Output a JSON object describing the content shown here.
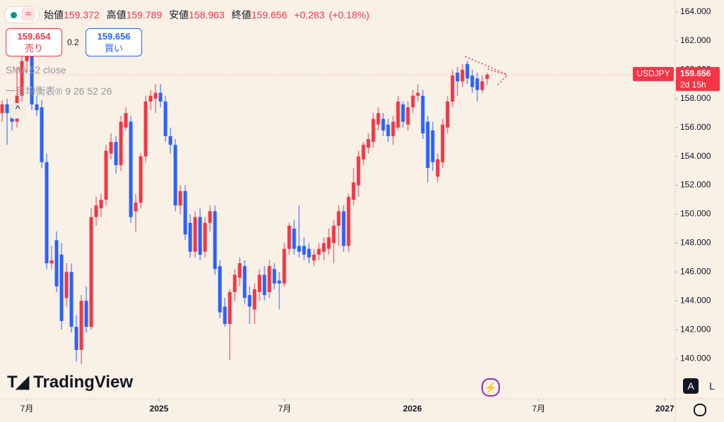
{
  "toolbar": {
    "open_label": "始値",
    "open": "159.372",
    "high_label": "高値",
    "high": "159.789",
    "low_label": "安値",
    "low": "158.963",
    "close_label": "終値",
    "close": "159.656",
    "change": "+0.283",
    "change_pct": "(+0.18%)"
  },
  "trade": {
    "sell_price": "159.654",
    "sell_label": "売り",
    "spread": "0.2",
    "buy_price": "159.656",
    "buy_label": "買い"
  },
  "indicators": [
    "SMA 52 close",
    "一目均衡表® 9 26 52 26"
  ],
  "branding": "TradingView",
  "scale_buttons": [
    "A",
    "L"
  ],
  "chart_data": {
    "type": "candlestick",
    "symbol": "USDJPY",
    "last_price": "159.656",
    "countdown": "2d 15h",
    "up_color": "#f23645",
    "down_color": "#2962ff",
    "x": [
      -5,
      -4,
      -3,
      -2,
      -1,
      0,
      1,
      2,
      3,
      4,
      5,
      6,
      7,
      8,
      9,
      10,
      11,
      12,
      13,
      14,
      15,
      16,
      17,
      18,
      19,
      20,
      21,
      22,
      23,
      24,
      25,
      26,
      27,
      28,
      29,
      30,
      31,
      32,
      33,
      34,
      35,
      36,
      37,
      38,
      39,
      40,
      41,
      42,
      43,
      44,
      45,
      46,
      47,
      48,
      49,
      50,
      51,
      52,
      53,
      54,
      55,
      56,
      57,
      58,
      59,
      60,
      61,
      62,
      63,
      64,
      65,
      66,
      67,
      68,
      69,
      70,
      71,
      72,
      73,
      74,
      75,
      76,
      77,
      78,
      79,
      80,
      81,
      82,
      83,
      84,
      85,
      86,
      87,
      88,
      89,
      90,
      91,
      92,
      93
    ],
    "open": [
      157.0,
      157.6,
      157.0,
      156.4,
      158.2,
      160.6,
      161.2,
      157.6,
      157.4,
      153.6,
      146.6,
      148.2,
      147.2,
      144.2,
      146.0,
      142.2,
      140.6,
      144.0,
      142.2,
      149.8,
      150.4,
      151.0,
      154.2,
      155.0,
      153.4,
      156.0,
      156.4,
      150.2,
      150.8,
      154.0,
      157.8,
      158.0,
      158.4,
      157.8,
      155.4,
      154.8,
      150.6,
      151.6,
      149.4,
      147.4,
      149.8,
      147.4,
      149.4,
      150.2,
      146.4,
      143.6,
      142.4,
      144.6,
      145.6,
      146.4,
      144.4,
      143.4,
      144.6,
      145.8,
      144.6,
      146.2,
      145.4,
      145.2,
      147.6,
      149.0,
      147.8,
      147.8,
      147.6,
      146.8,
      147.2,
      147.4,
      147.6,
      148.0,
      149.2,
      150.2,
      147.8,
      151.0,
      152.0,
      153.8,
      154.6,
      155.0,
      156.2,
      156.6,
      156.2,
      155.4,
      156.0,
      157.6,
      156.2,
      157.4,
      158.2,
      158.2,
      156.4,
      155.8,
      152.6,
      153.6,
      156.0,
      157.8,
      159.8,
      159.2,
      160.4,
      159.6,
      159.4,
      158.6,
      159.372
    ],
    "high": [
      157.9,
      158.0,
      157.6,
      160.2,
      161.0,
      161.6,
      161.4,
      158.2,
      157.9,
      154.2,
      147.8,
      148.8,
      148.0,
      146.6,
      146.6,
      143.0,
      144.4,
      145.0,
      150.4,
      151.2,
      151.4,
      154.8,
      155.6,
      155.4,
      156.8,
      157.4,
      156.8,
      151.4,
      154.2,
      158.2,
      158.6,
      159.0,
      159.0,
      158.2,
      156.0,
      155.2,
      152.0,
      152.0,
      150.0,
      150.2,
      150.4,
      149.8,
      150.6,
      150.6,
      146.8,
      144.2,
      144.8,
      146.2,
      147.0,
      146.8,
      145.0,
      145.2,
      146.2,
      146.4,
      146.8,
      146.6,
      146.0,
      148.0,
      149.4,
      149.6,
      150.6,
      148.4,
      148.0,
      147.6,
      148.0,
      148.4,
      149.0,
      149.6,
      150.6,
      150.6,
      151.4,
      153.2,
      154.4,
      155.0,
      155.6,
      157.0,
      157.4,
      157.0,
      156.6,
      156.8,
      158.2,
      157.8,
      157.8,
      158.6,
      159.0,
      158.6,
      156.8,
      156.4,
      154.2,
      156.6,
      158.2,
      160.0,
      160.2,
      160.4,
      160.6,
      160.0,
      159.8,
      159.6,
      159.789
    ],
    "low": [
      156.4,
      154.8,
      155.8,
      156.0,
      157.8,
      159.8,
      157.2,
      156.8,
      153.2,
      146.2,
      146.2,
      144.6,
      142.0,
      143.6,
      141.8,
      139.8,
      139.6,
      141.8,
      142.0,
      149.2,
      149.8,
      150.6,
      153.8,
      152.8,
      153.0,
      155.8,
      149.4,
      148.8,
      150.4,
      153.6,
      157.2,
      157.0,
      157.4,
      155.0,
      154.2,
      150.2,
      150.0,
      148.2,
      147.0,
      147.0,
      146.8,
      147.0,
      148.8,
      145.8,
      142.8,
      142.2,
      139.9,
      144.0,
      145.0,
      143.8,
      142.4,
      142.4,
      144.0,
      144.0,
      144.2,
      144.8,
      143.4,
      145.0,
      147.2,
      147.2,
      147.0,
      146.8,
      146.6,
      146.4,
      146.8,
      146.8,
      147.2,
      146.6,
      147.8,
      147.4,
      147.4,
      150.6,
      151.2,
      153.4,
      154.2,
      154.6,
      155.8,
      155.4,
      155.0,
      154.8,
      155.8,
      156.0,
      155.8,
      157.0,
      157.8,
      155.2,
      152.2,
      153.0,
      152.2,
      153.2,
      155.6,
      157.4,
      158.2,
      158.8,
      159.0,
      158.4,
      157.8,
      158.4,
      158.963
    ],
    "close": [
      157.6,
      157.0,
      156.4,
      158.2,
      160.6,
      161.2,
      157.6,
      157.2,
      153.6,
      146.6,
      146.8,
      145.0,
      142.6,
      146.0,
      142.2,
      140.6,
      144.0,
      142.2,
      149.8,
      150.6,
      151.0,
      154.4,
      155.0,
      153.4,
      156.4,
      157.0,
      149.8,
      150.8,
      154.0,
      157.8,
      158.2,
      158.4,
      157.8,
      155.4,
      154.8,
      150.6,
      151.6,
      148.6,
      147.4,
      149.8,
      147.2,
      149.4,
      150.2,
      146.2,
      143.2,
      142.4,
      144.6,
      145.8,
      146.6,
      144.2,
      143.6,
      144.8,
      145.8,
      144.4,
      146.4,
      145.2,
      145.2,
      147.6,
      149.2,
      147.6,
      147.4,
      147.2,
      147.0,
      147.2,
      147.6,
      148.0,
      148.4,
      149.2,
      150.2,
      147.8,
      151.2,
      152.2,
      154.0,
      154.8,
      155.2,
      156.6,
      157.0,
      155.8,
      155.4,
      156.4,
      157.8,
      156.4,
      157.4,
      158.2,
      158.4,
      155.6,
      153.2,
      153.6,
      153.8,
      156.2,
      157.8,
      159.6,
      159.2,
      160.0,
      159.4,
      158.8,
      158.6,
      159.2,
      159.656
    ],
    "xlim": [
      -5.43,
      131
    ],
    "xticks": [
      {
        "value": 0,
        "label": "7月"
      },
      {
        "value": 26.7,
        "label": "2025"
      },
      {
        "value": 52.1,
        "label": "7月"
      },
      {
        "value": 77.9,
        "label": "2026"
      },
      {
        "value": 103.4,
        "label": "7月"
      },
      {
        "value": 128.9,
        "label": "2027"
      }
    ],
    "ylim": [
      137.22,
      164.83
    ],
    "yticks": [
      {
        "value": 140,
        "label": "140.000"
      },
      {
        "value": 142,
        "label": "142.000"
      },
      {
        "value": 144,
        "label": "144.000"
      },
      {
        "value": 146,
        "label": "146.000"
      },
      {
        "value": 148,
        "label": "148.000"
      },
      {
        "value": 150,
        "label": "150.000"
      },
      {
        "value": 152,
        "label": "152.000"
      },
      {
        "value": 154,
        "label": "154.000"
      },
      {
        "value": 156,
        "label": "156.000"
      },
      {
        "value": 158,
        "label": "158.000"
      },
      {
        "value": 160,
        "label": "160.000"
      },
      {
        "value": 162,
        "label": "162.000"
      },
      {
        "value": 164,
        "label": "164.000"
      }
    ]
  }
}
